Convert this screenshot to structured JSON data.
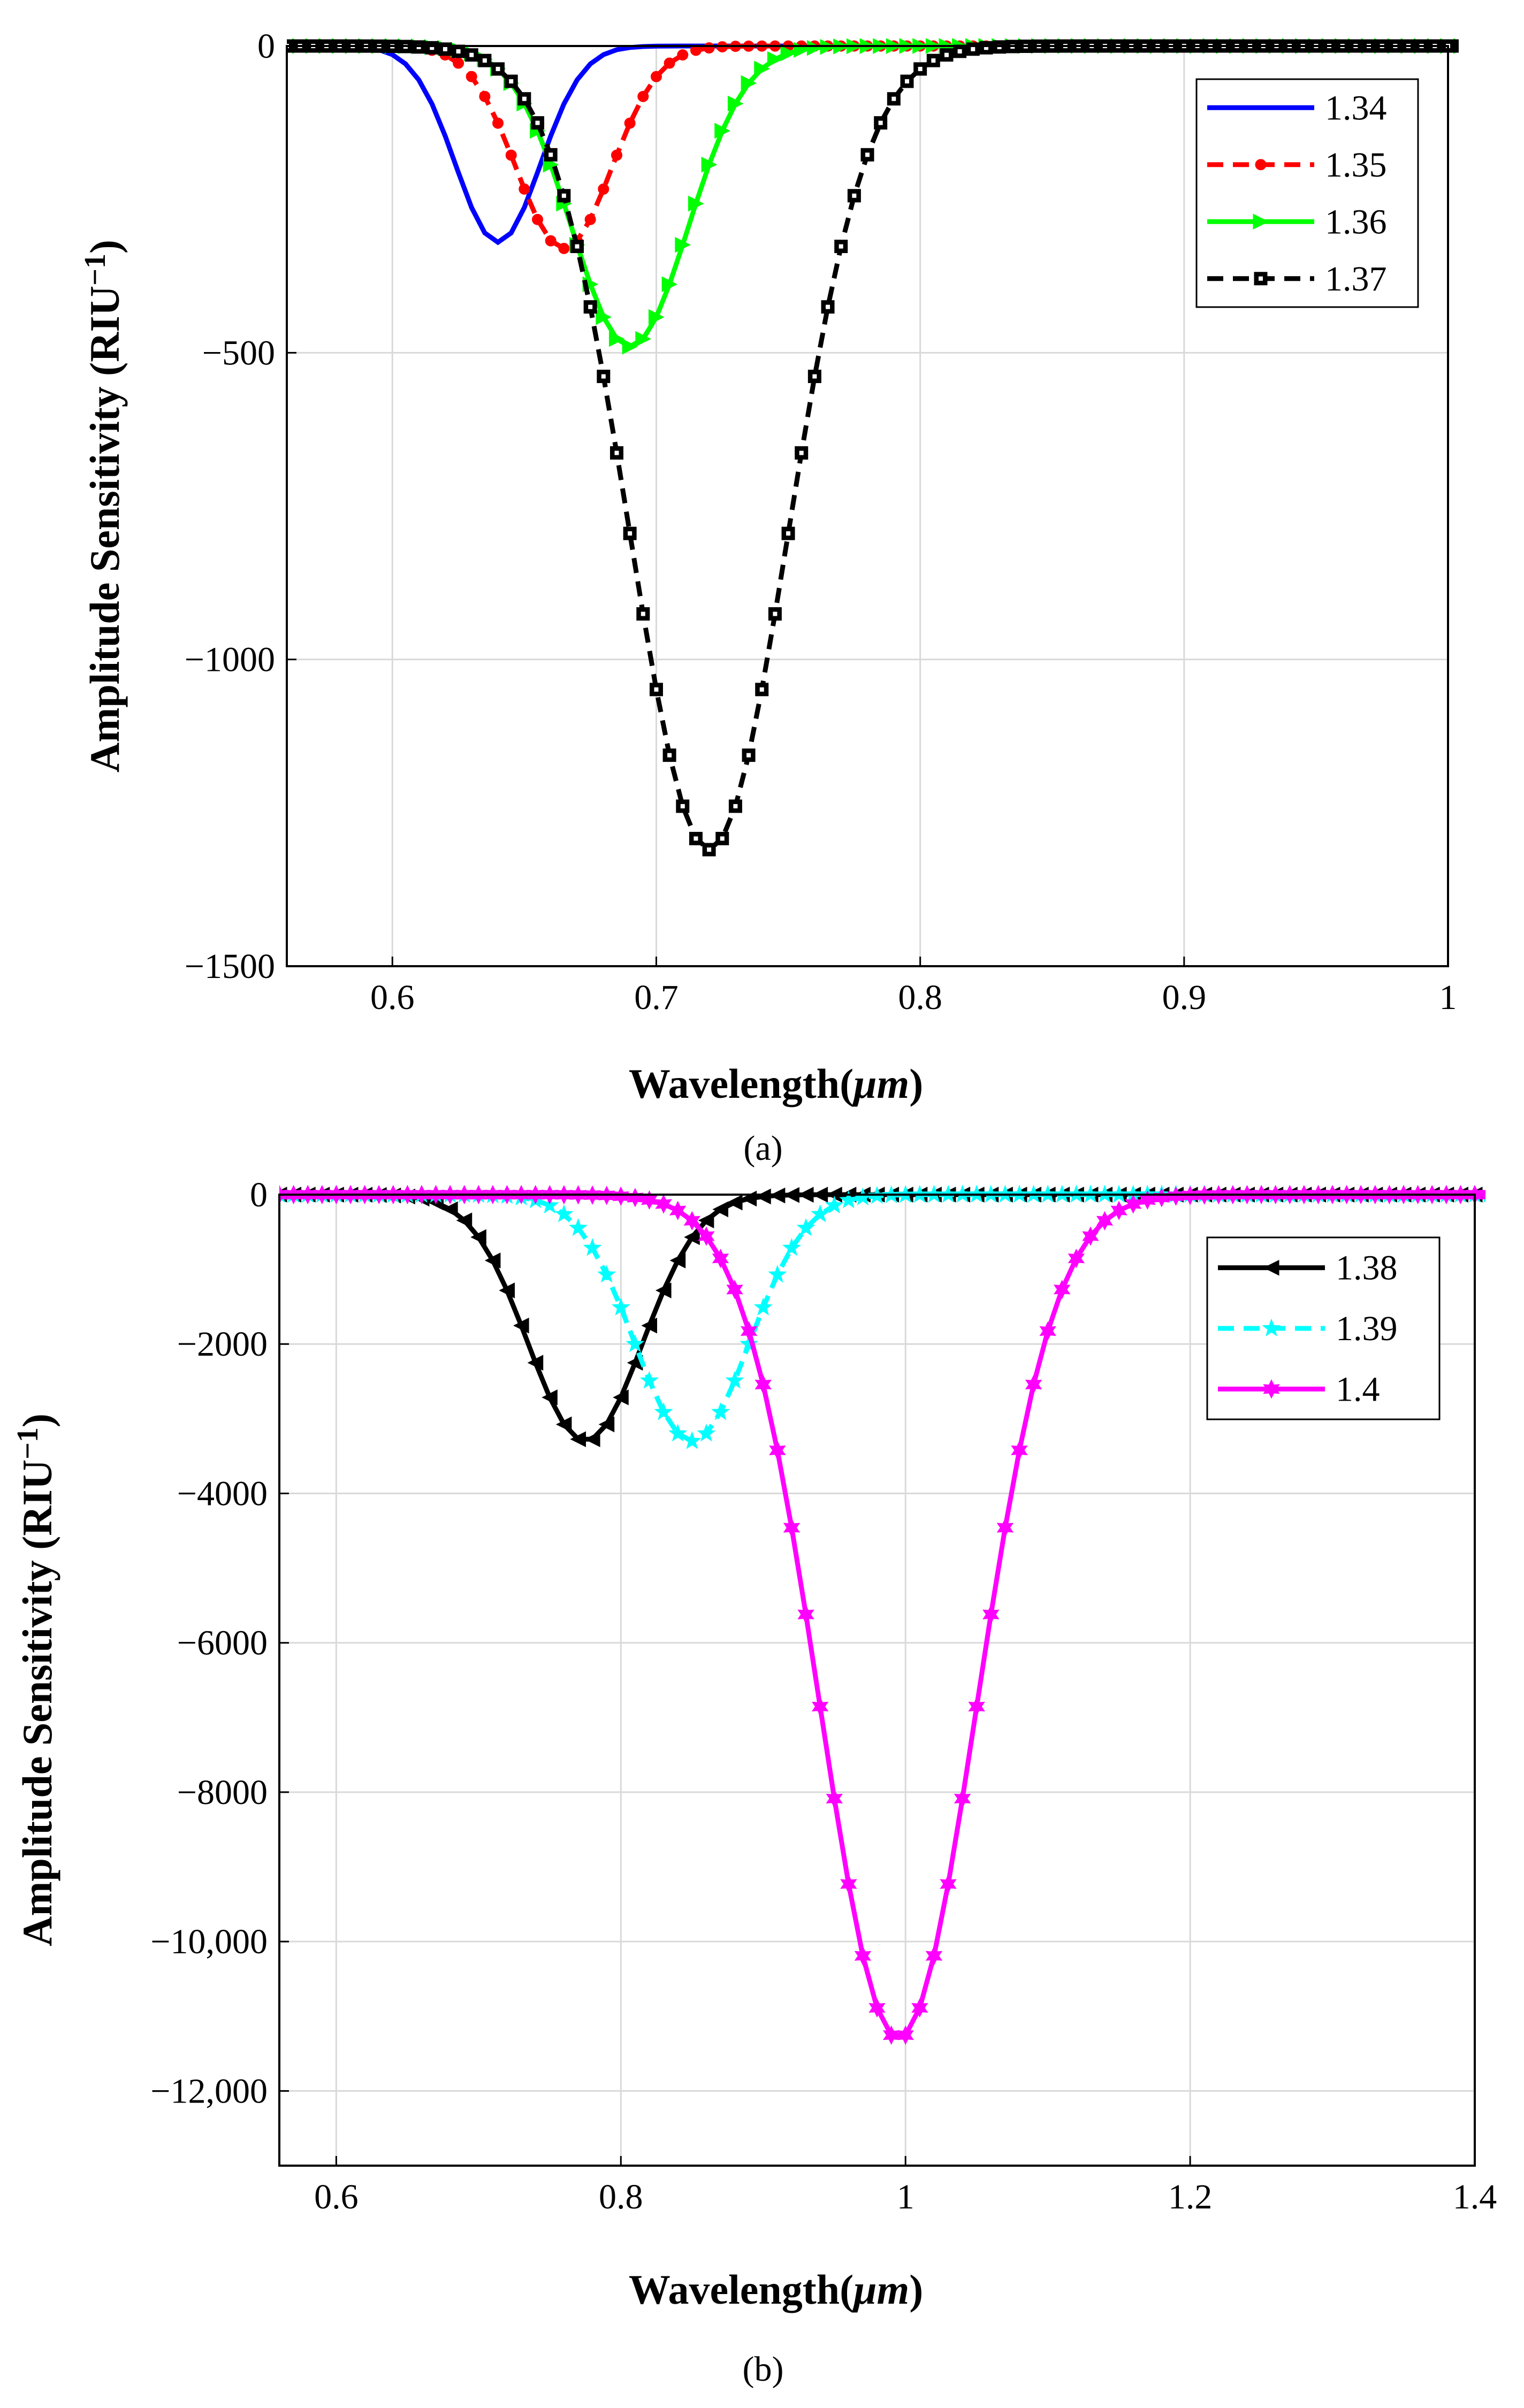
{
  "chart_data": [
    {
      "type": "line",
      "panel_label": "(a)",
      "xlabel_prefix": "Wavelength(",
      "xlabel_unit": "μm",
      "xlabel_suffix": ")",
      "ylabel_main": "Amplitude Sensitivity (RIU",
      "ylabel_sup": "−1",
      "ylabel_end": ")",
      "xlim": [
        0.56,
        1.0
      ],
      "ylim": [
        -1500,
        0
      ],
      "xticks": [
        0.6,
        0.7,
        0.8,
        0.9,
        1.0
      ],
      "xtick_labels": [
        "0.6",
        "0.7",
        "0.8",
        "0.9",
        "1"
      ],
      "yticks": [
        0,
        -500,
        -1000,
        -1500
      ],
      "ytick_labels": [
        "0",
        "−500",
        "−1000",
        "−1500"
      ],
      "grid": true,
      "zero_line": true,
      "legend_position": "top-right",
      "series": [
        {
          "name": "1.34",
          "color": "#0000ff",
          "dash": "solid",
          "marker": "none",
          "center": 0.64,
          "min": -320,
          "width": 0.016
        },
        {
          "name": "1.35",
          "color": "#ff0000",
          "dash": "dashed",
          "marker": "circle",
          "center": 0.665,
          "min": -330,
          "width": 0.018
        },
        {
          "name": "1.36",
          "color": "#00ff00",
          "dash": "solid",
          "marker": "triangle-right",
          "center": 0.69,
          "min": -490,
          "width": 0.022
        },
        {
          "name": "1.37",
          "color": "#000000",
          "dash": "dashed",
          "marker": "square-dot",
          "center": 0.72,
          "min": -1310,
          "width": 0.03
        }
      ],
      "x_range": [
        0.56,
        1.005
      ],
      "x_step": 0.005
    },
    {
      "type": "line",
      "panel_label": "(b)",
      "xlabel_prefix": "Wavelength(",
      "xlabel_unit": "μm",
      "xlabel_suffix": ")",
      "ylabel_main": "Amplitude Sensitivity (RIU",
      "ylabel_sup": "−1",
      "ylabel_end": ")",
      "xlim": [
        0.56,
        1.4
      ],
      "ylim": [
        -13000,
        0
      ],
      "xticks": [
        0.6,
        0.8,
        1.0,
        1.2,
        1.4
      ],
      "xtick_labels": [
        "0.6",
        "0.8",
        "1",
        "1.2",
        "1.4"
      ],
      "yticks": [
        0,
        -2000,
        -4000,
        -6000,
        -8000,
        -10000,
        -12000
      ],
      "ytick_labels": [
        "0",
        "−2000",
        "−4000",
        "−6000",
        "−8000",
        "−10,000",
        "−12,000"
      ],
      "grid": true,
      "zero_line": false,
      "legend_position": "top-right",
      "series": [
        {
          "name": "1.38",
          "color": "#000000",
          "dash": "solid",
          "marker": "triangle-left",
          "center": 0.775,
          "min": -3300,
          "width": 0.04
        },
        {
          "name": "1.39",
          "color": "#00ffff",
          "dash": "dashed",
          "marker": "star",
          "center": 0.85,
          "min": -3300,
          "width": 0.04
        },
        {
          "name": "1.4",
          "color": "#ff00ff",
          "dash": "solid",
          "marker": "hexagram",
          "center": 0.995,
          "min": -11300,
          "width": 0.055
        }
      ],
      "x_range": [
        0.56,
        1.41
      ],
      "x_step": 0.01
    }
  ]
}
